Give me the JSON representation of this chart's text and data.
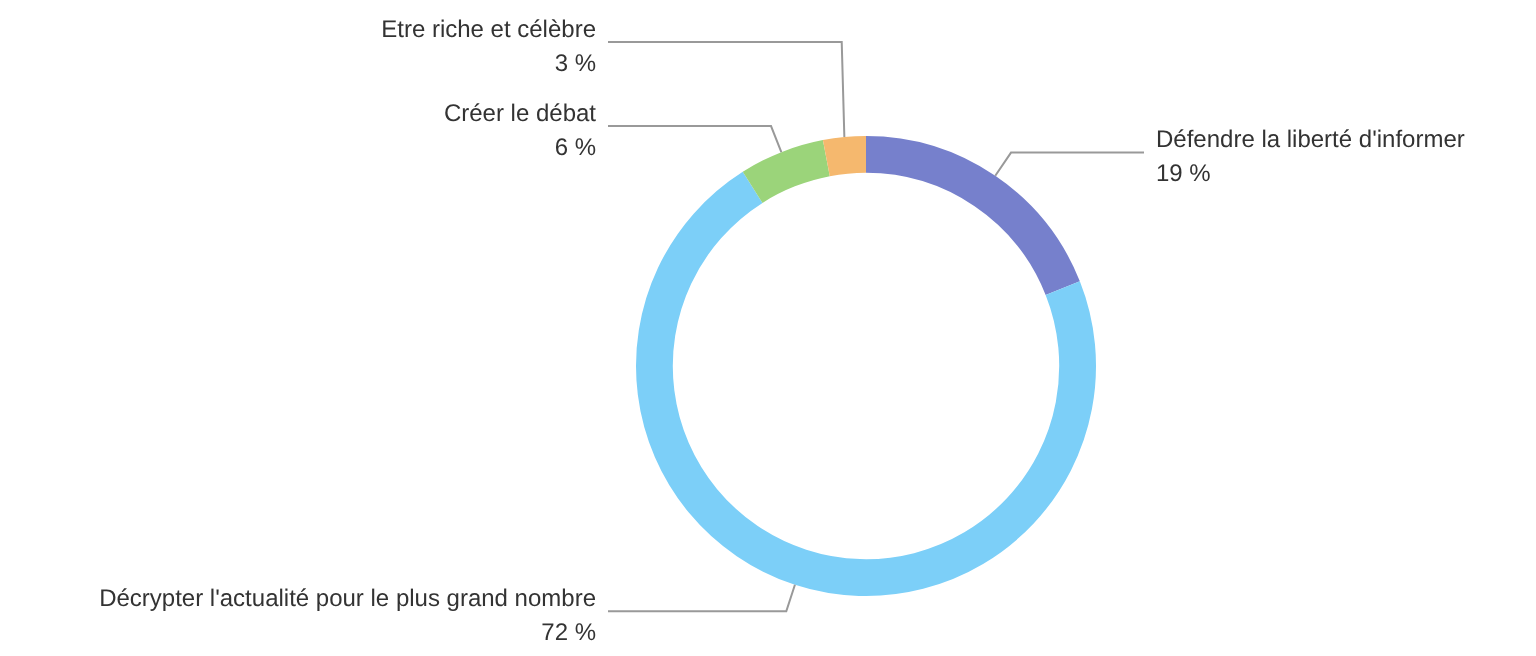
{
  "chart_data": {
    "type": "donut",
    "categories": [
      "Défendre la liberté d'informer",
      "Décrypter l'actualité pour le plus grand nombre",
      "Créer le débat",
      "Etre riche et célèbre"
    ],
    "values": [
      19,
      72,
      6,
      3
    ],
    "colors": [
      "#7680cc",
      "#7ccff8",
      "#9bd47a",
      "#f5b86e"
    ],
    "value_labels": [
      "19 %",
      "72 %",
      "6 %",
      "3 %"
    ],
    "legend": false
  }
}
